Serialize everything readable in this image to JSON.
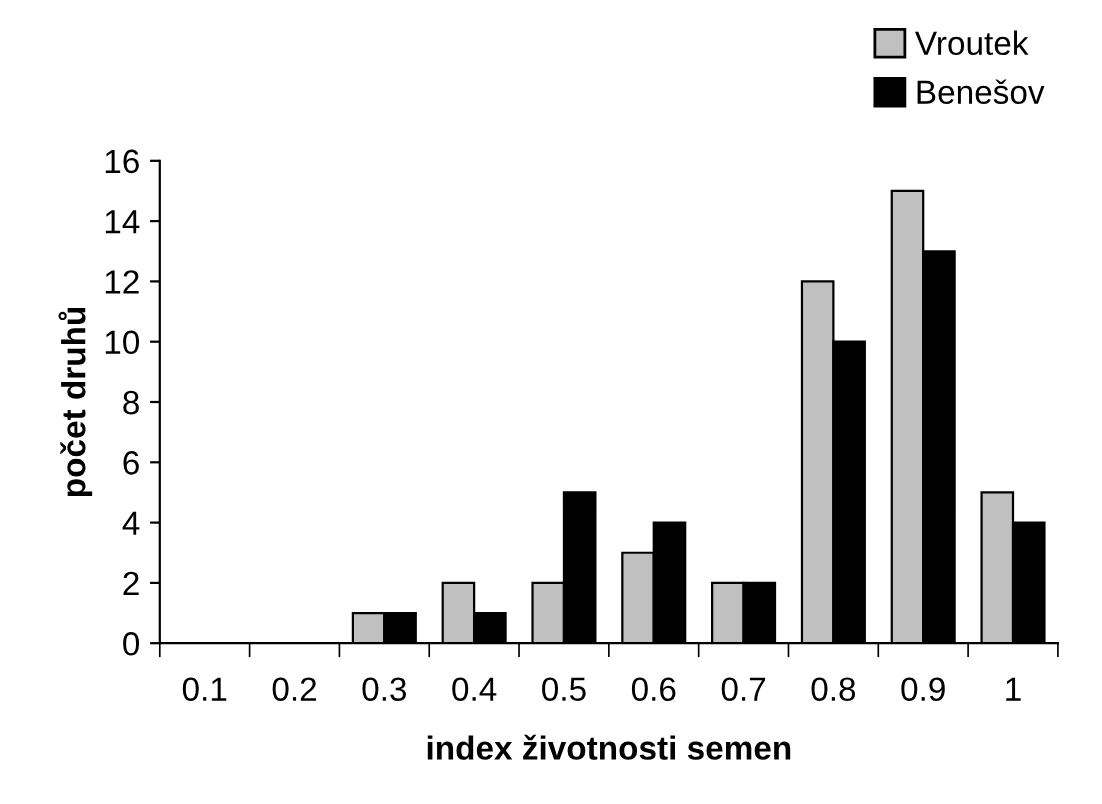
{
  "chart_data": {
    "type": "bar",
    "xlabel": "index životnosti semen",
    "ylabel": "počet druhů",
    "categories": [
      "0.1",
      "0.2",
      "0.3",
      "0.4",
      "0.5",
      "0.6",
      "0.7",
      "0.8",
      "0.9",
      "1"
    ],
    "series": [
      {
        "name": "Vroutek",
        "color": "#c0c0c0",
        "values": [
          0,
          0,
          1,
          2,
          2,
          3,
          2,
          12,
          15,
          5
        ]
      },
      {
        "name": "Benešov",
        "color": "#000000",
        "values": [
          0,
          0,
          1,
          1,
          5,
          4,
          2,
          10,
          13,
          4
        ]
      }
    ],
    "ylim": [
      0,
      16
    ],
    "yticks": [
      0,
      2,
      4,
      6,
      8,
      10,
      12,
      14,
      16
    ],
    "grid": false,
    "legend": "top right"
  }
}
